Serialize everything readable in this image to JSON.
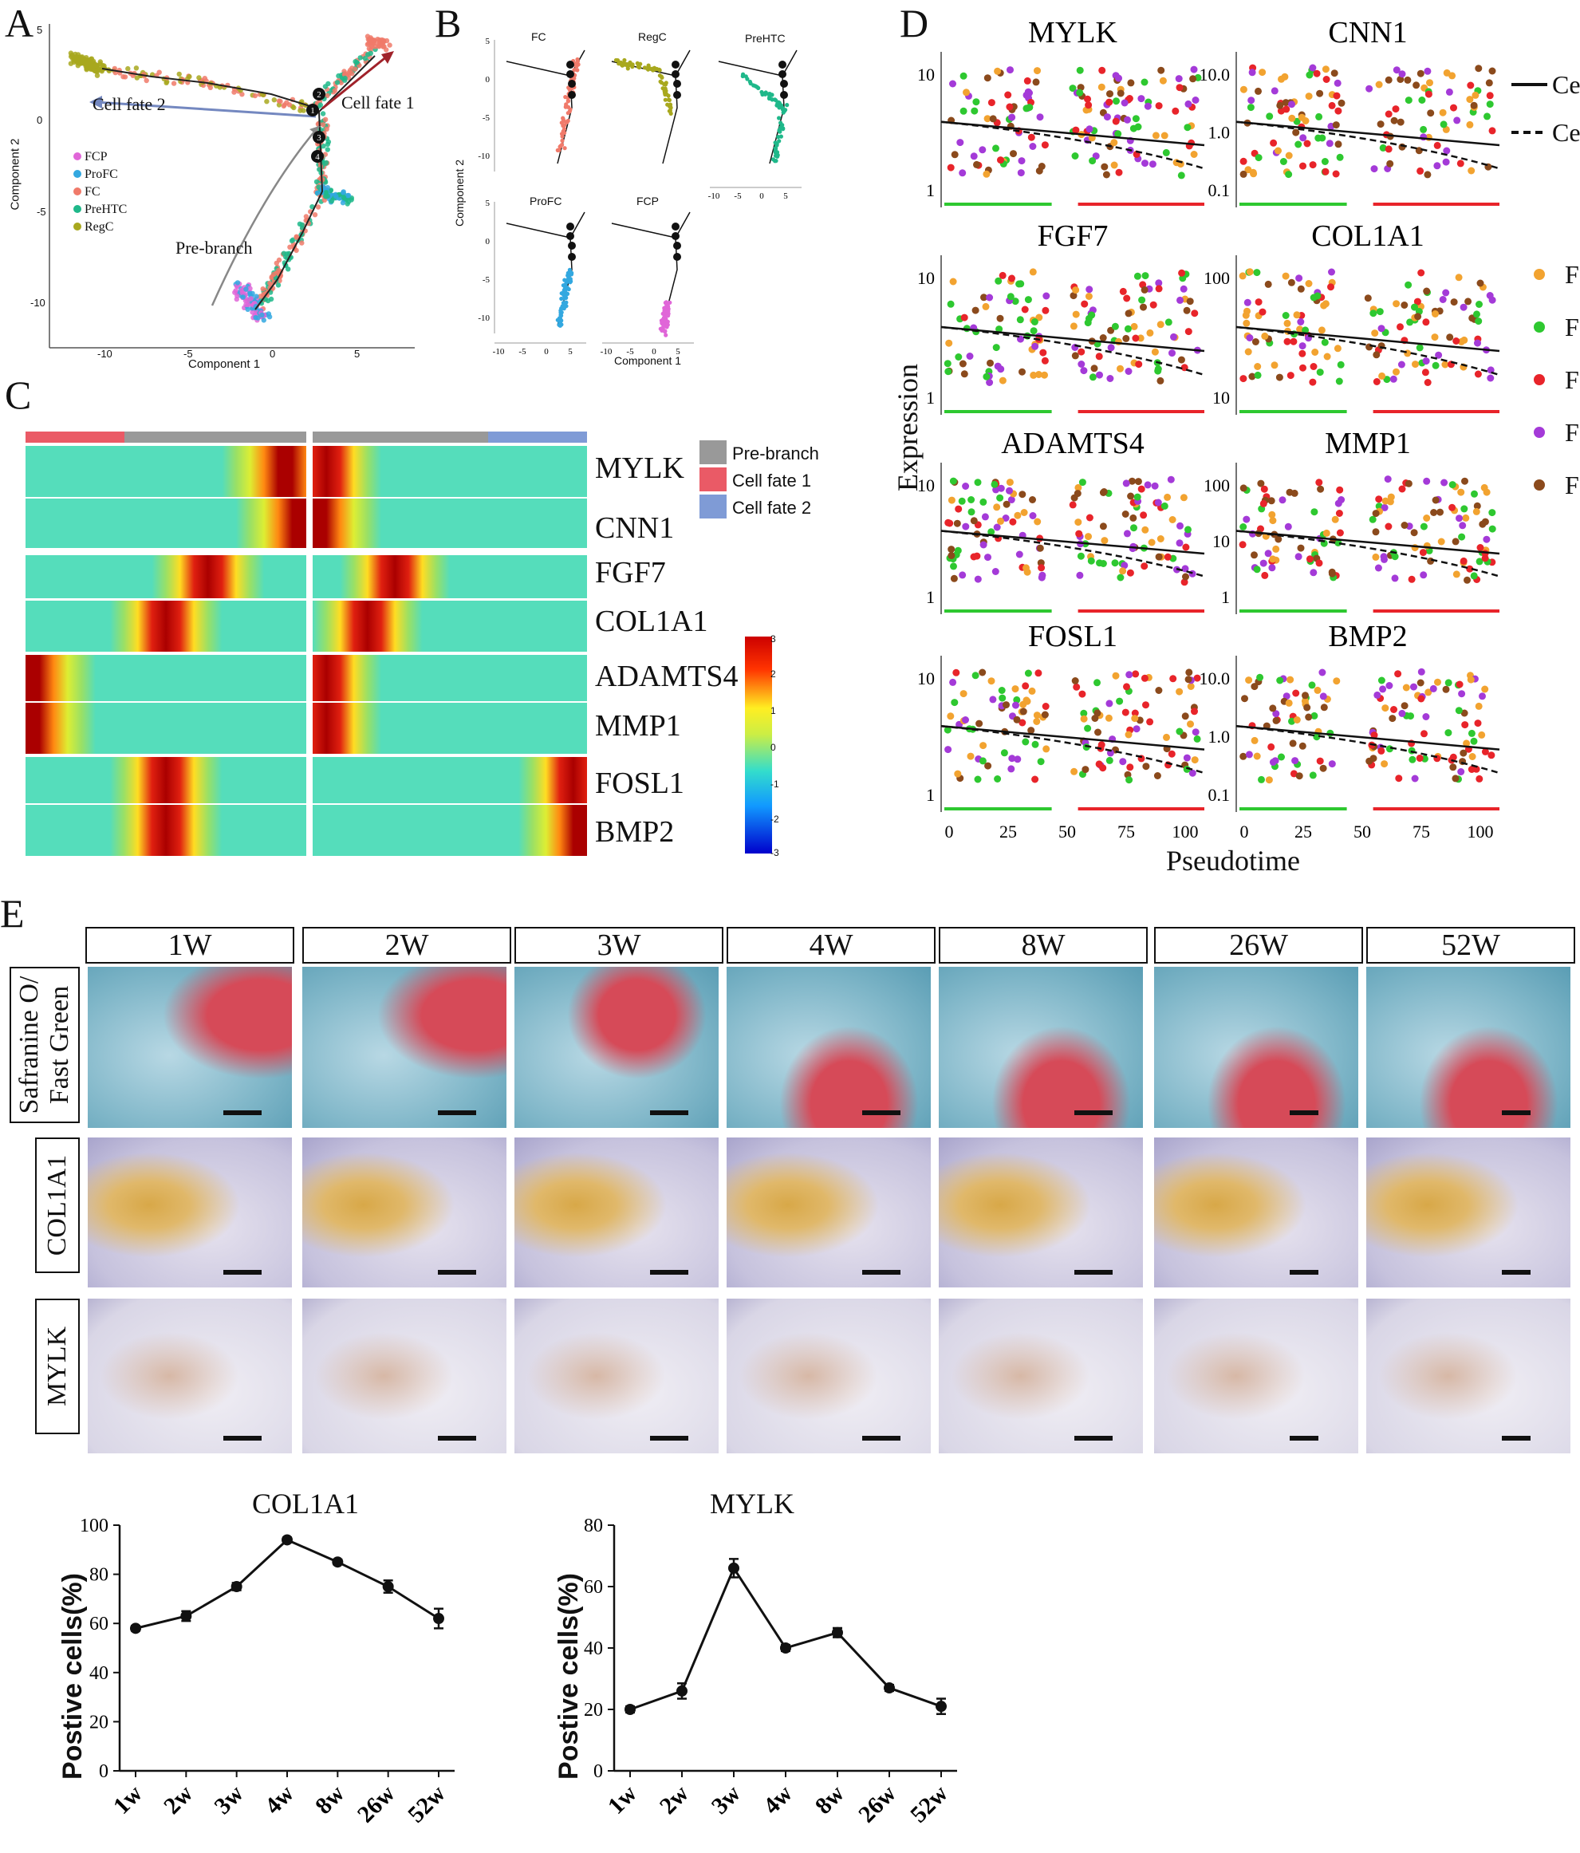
{
  "panels": {
    "A": "A",
    "B": "B",
    "C": "C",
    "D": "D",
    "E": "E"
  },
  "panelA": {
    "xlabel": "Component 1",
    "ylabel": "Component 2",
    "xticks": [
      "-10",
      "-5",
      "0",
      "5"
    ],
    "yticks": [
      "5",
      "0",
      "-5",
      "-10"
    ],
    "annotations": {
      "fate1": "Cell fate 1",
      "fate2": "Cell fate 2",
      "prebranch": "Pre-branch"
    },
    "nodes": [
      "1",
      "2",
      "3",
      "4"
    ],
    "legend": [
      {
        "label": "FCP",
        "color": "#e066d8"
      },
      {
        "label": "ProFC",
        "color": "#33a8e0"
      },
      {
        "label": "FC",
        "color": "#f07a6a"
      },
      {
        "label": "PreHTC",
        "color": "#1fb88a"
      },
      {
        "label": "RegC",
        "color": "#a8a81e"
      }
    ]
  },
  "panelB": {
    "xlabel": "Component 1",
    "ylabel": "Component 2",
    "titles": [
      "FC",
      "RegC",
      "PreHTC",
      "ProFC",
      "FCP"
    ],
    "xticks": [
      "-10",
      "-5",
      "0",
      "5"
    ],
    "yticks": [
      "5",
      "0",
      "-5",
      "-10"
    ]
  },
  "panelC": {
    "genes": [
      "MYLK",
      "CNN1",
      "FGF7",
      "COL1A1",
      "ADAMTS4",
      "MMP1",
      "FOSL1",
      "BMP2"
    ],
    "legend": [
      {
        "label": "Pre-branch",
        "color": "#999999"
      },
      {
        "label": "Cell fate 1",
        "color": "#ea5a66"
      },
      {
        "label": "Cell fate 2",
        "color": "#7f9bd6"
      }
    ],
    "scale_ticks": [
      "3",
      "2",
      "1",
      "0",
      "-1",
      "-2",
      "-3"
    ],
    "peaks_left": [
      0.93,
      0.97,
      0.65,
      0.5,
      0.02,
      0.02,
      0.5,
      0.5
    ],
    "peaks_right": [
      0.05,
      0.02,
      0.3,
      0.2,
      0.04,
      0.04,
      0.95,
      0.97
    ]
  },
  "panelD": {
    "ylabel": "Expression",
    "xlabel": "Pseudotime",
    "xticks": [
      "0",
      "25",
      "50",
      "75",
      "100"
    ],
    "legend_lines": [
      "Ce",
      "Ce"
    ],
    "legend_points": [
      "F",
      "F",
      "F",
      "F",
      "F"
    ],
    "legend_point_colors": [
      "#f2a330",
      "#2ec830",
      "#e8242a",
      "#a43ad8",
      "#8b4a1c"
    ],
    "plots": [
      {
        "gene": "MYLK",
        "yticks": [
          "10",
          "1"
        ]
      },
      {
        "gene": "CNN1",
        "yticks": [
          "10.0",
          "1.0",
          "0.1"
        ]
      },
      {
        "gene": "FGF7",
        "yticks": [
          "10",
          "1"
        ]
      },
      {
        "gene": "COL1A1",
        "yticks": [
          "100",
          "10"
        ]
      },
      {
        "gene": "ADAMTS4",
        "yticks": [
          "10",
          "1"
        ]
      },
      {
        "gene": "MMP1",
        "yticks": [
          "100",
          "10",
          "1"
        ]
      },
      {
        "gene": "FOSL1",
        "yticks": [
          "10",
          "1"
        ]
      },
      {
        "gene": "BMP2",
        "yticks": [
          "10.0",
          "1.0",
          "0.1"
        ]
      }
    ]
  },
  "panelE": {
    "timepoints": [
      "1W",
      "2W",
      "3W",
      "4W",
      "8W",
      "26W",
      "52W"
    ],
    "rows": [
      "Safranine O/ Fast Green",
      "COL1A1",
      "MYLK"
    ]
  },
  "chart_data": [
    {
      "type": "line",
      "title": "COL1A1",
      "ylabel": "Postive cells(%)",
      "xlabel": "",
      "categories": [
        "1w",
        "2w",
        "3w",
        "4w",
        "8w",
        "26w",
        "52w"
      ],
      "values": [
        58,
        63,
        75,
        94,
        85,
        75,
        62
      ],
      "errors": [
        1,
        2,
        1.5,
        1,
        1,
        2.5,
        4
      ],
      "ylim": [
        0,
        100
      ],
      "yticks": [
        "0",
        "20",
        "40",
        "60",
        "80",
        "100"
      ]
    },
    {
      "type": "line",
      "title": "MYLK",
      "ylabel": "Postive cells(%)",
      "xlabel": "",
      "categories": [
        "1w",
        "2w",
        "3w",
        "4w",
        "8w",
        "26w",
        "52w"
      ],
      "values": [
        20,
        26,
        66,
        40,
        45,
        27,
        21
      ],
      "errors": [
        1,
        2.5,
        3,
        1,
        1.5,
        1,
        2.5
      ],
      "ylim": [
        0,
        80
      ],
      "yticks": [
        "0",
        "20",
        "40",
        "60",
        "80"
      ]
    }
  ]
}
